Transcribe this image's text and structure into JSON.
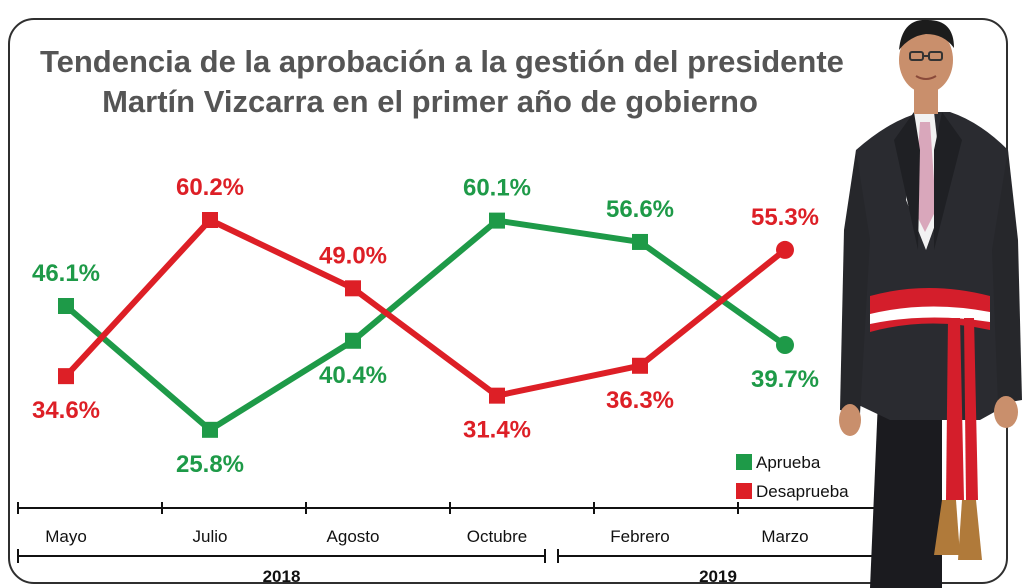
{
  "title_line1": "Tendencia de la aprobación a la gestión del presidente",
  "title_line2": "Martín Vizcarra en el primer año de gobierno",
  "chart_data": {
    "type": "line",
    "categories": [
      "Mayo",
      "Julio",
      "Agosto",
      "Octubre",
      "Febrero",
      "Marzo"
    ],
    "year_groups": [
      {
        "label": "2018",
        "categories": [
          "Mayo",
          "Julio",
          "Agosto",
          "Octubre"
        ]
      },
      {
        "label": "2019",
        "categories": [
          "Febrero",
          "Marzo"
        ]
      }
    ],
    "series": [
      {
        "name": "Aprueba",
        "color": "#1e9a48",
        "values": [
          46.1,
          25.8,
          40.4,
          60.1,
          56.6,
          39.7
        ],
        "labels": [
          "46.1%",
          "25.8%",
          "40.4%",
          "60.1%",
          "56.6%",
          "39.7%"
        ]
      },
      {
        "name": "Desaprueba",
        "color": "#dd1f26",
        "values": [
          34.6,
          60.2,
          49.0,
          31.4,
          36.3,
          55.3
        ],
        "labels": [
          "34.6%",
          "60.2%",
          "49.0%",
          "31.4%",
          "36.3%",
          "55.3%"
        ]
      }
    ],
    "ylim": [
      20,
      65
    ],
    "grid": false,
    "legend": "bottom-right"
  }
}
